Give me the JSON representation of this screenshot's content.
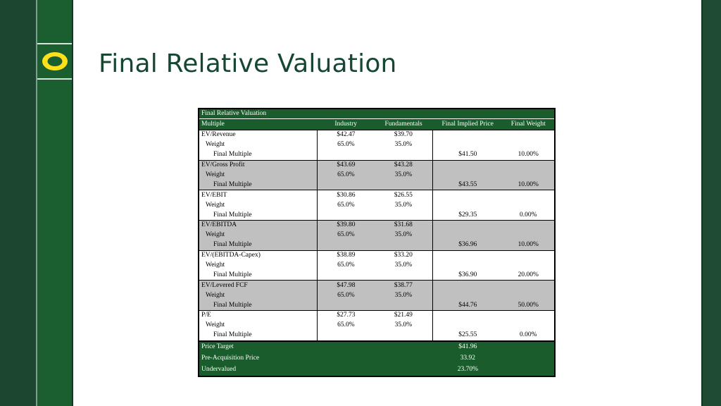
{
  "title": "Final Relative Valuation",
  "logo_letter": "O",
  "colors": {
    "brand_green": "#1a5c2c",
    "title_green": "#154733",
    "logo_yellow": "#fee11a",
    "row_gray": "#c0c0c0"
  },
  "table": {
    "caption": "Final Relative Valuation",
    "headers": {
      "multiple": "Multiple",
      "industry": "Industry",
      "fundamentals": "Fundamentals",
      "implied": "Final Implied Price",
      "weight": "Final Weight"
    },
    "groups": [
      {
        "name": "EV/Revenue",
        "industry": "$42.47",
        "fundamentals": "$39.70",
        "weight_label": "Weight",
        "industry_weight": "65.0%",
        "fundamentals_weight": "35.0%",
        "final_label": "Final Multiple",
        "implied": "$41.50",
        "final_weight": "10.00%"
      },
      {
        "name": "EV/Gross Profit",
        "industry": "$43.69",
        "fundamentals": "$43.28",
        "weight_label": "Weight",
        "industry_weight": "65.0%",
        "fundamentals_weight": "35.0%",
        "final_label": "Final Multiple",
        "implied": "$43.55",
        "final_weight": "10.00%"
      },
      {
        "name": "EV/EBIT",
        "industry": "$30.86",
        "fundamentals": "$26.55",
        "weight_label": "Weight",
        "industry_weight": "65.0%",
        "fundamentals_weight": "35.0%",
        "final_label": "Final Multiple",
        "implied": "$29.35",
        "final_weight": "0.00%"
      },
      {
        "name": "EV/EBITDA",
        "industry": "$39.80",
        "fundamentals": "$31.68",
        "weight_label": "Weight",
        "industry_weight": "65.0%",
        "fundamentals_weight": "35.0%",
        "final_label": "Final Multiple",
        "implied": "$36.96",
        "final_weight": "10.00%"
      },
      {
        "name": "EV/(EBITDA-Capex)",
        "industry": "$38.89",
        "fundamentals": "$33.20",
        "weight_label": "Weight",
        "industry_weight": "65.0%",
        "fundamentals_weight": "35.0%",
        "final_label": "Final Multiple",
        "implied": "$36.90",
        "final_weight": "20.00%"
      },
      {
        "name": "EV/Levered FCF",
        "industry": "$47.98",
        "fundamentals": "$38.77",
        "weight_label": "Weight",
        "industry_weight": "65.0%",
        "fundamentals_weight": "35.0%",
        "final_label": "Final Multiple",
        "implied": "$44.76",
        "final_weight": "50.00%"
      },
      {
        "name": "P/E",
        "industry": "$27.73",
        "fundamentals": "$21.49",
        "weight_label": "Weight",
        "industry_weight": "65.0%",
        "fundamentals_weight": "35.0%",
        "final_label": "Final Multiple",
        "implied": "$25.55",
        "final_weight": "0.00%"
      }
    ],
    "summary": [
      {
        "label": "Price Target",
        "value": "$41.96"
      },
      {
        "label": "Pre-Acquisition Price",
        "value": "33.92"
      },
      {
        "label": "Undervalued",
        "value": "23.70%"
      }
    ]
  }
}
